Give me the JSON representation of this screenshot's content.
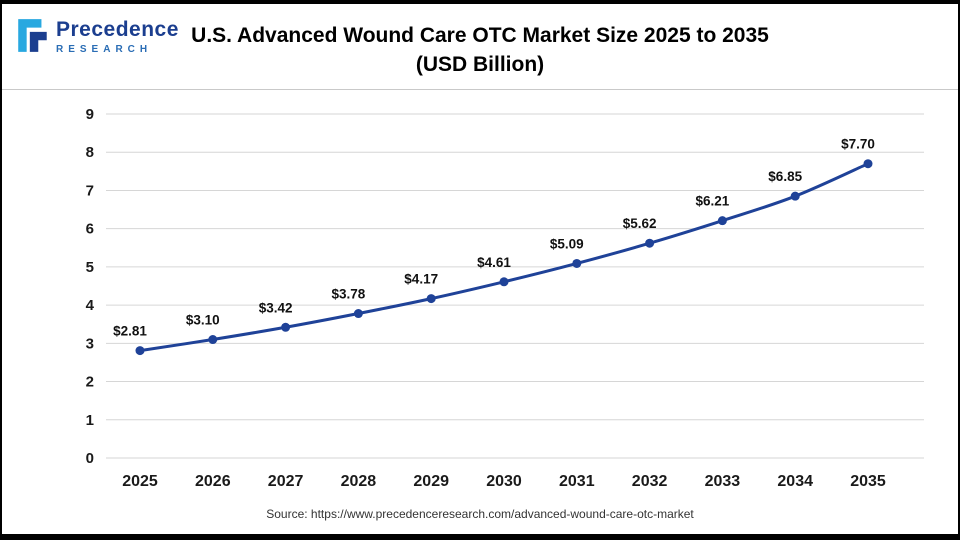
{
  "header": {
    "logo": {
      "name": "Precedence",
      "subname": "RESEARCH"
    },
    "title_line1": "U.S. Advanced Wound Care OTC Market Size 2025 to 2035",
    "title_line2": "(USD Billion)"
  },
  "source": "Source: https://www.precedenceresearch.com/advanced-wound-care-otc-market",
  "chart_data": {
    "type": "line",
    "title": "U.S. Advanced Wound Care OTC Market Size 2025 to 2035 (USD Billion)",
    "categories": [
      "2025",
      "2026",
      "2027",
      "2028",
      "2029",
      "2030",
      "2031",
      "2032",
      "2033",
      "2034",
      "2035"
    ],
    "values": [
      2.81,
      3.1,
      3.42,
      3.78,
      4.17,
      4.61,
      5.09,
      5.62,
      6.21,
      6.85,
      7.7
    ],
    "point_labels": [
      "$2.81",
      "$3.10",
      "$3.42",
      "$3.78",
      "$4.17",
      "$4.61",
      "$5.09",
      "$5.62",
      "$6.21",
      "$6.85",
      "$7.70"
    ],
    "xlabel": "",
    "ylabel": "",
    "ylim": [
      0,
      9
    ],
    "ytick_step": 1,
    "grid": true,
    "legend": "none",
    "line_color": "#1f4298",
    "marker_color": "#1f4298",
    "grid_color": "#d6d6d6",
    "axis_label_color": "#1a1a1a",
    "data_label_color": "#111111"
  }
}
